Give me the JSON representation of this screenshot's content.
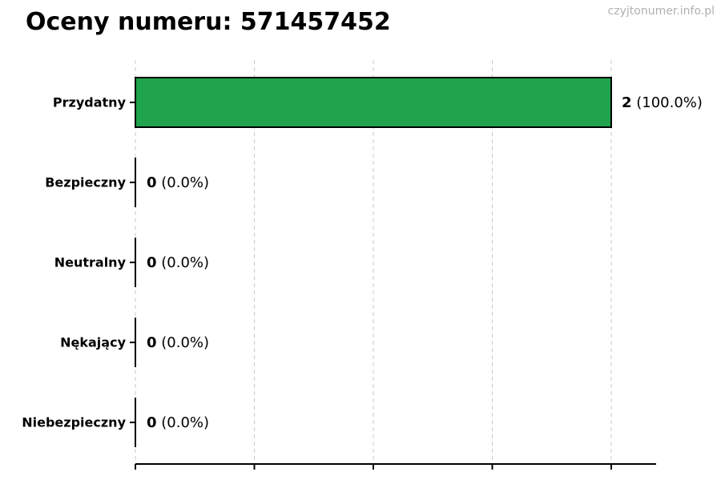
{
  "title": "Oceny numeru: 571457452",
  "watermark": "czyjtonumer.info.pl",
  "colors": {
    "bar_fill": "#1fa34c",
    "bar_stroke": "#000000",
    "grid": "#c9c9c9",
    "axis": "#000000",
    "label_text": "#000000",
    "watermark_text": "#b0b0b0"
  },
  "chart_data": {
    "type": "bar",
    "orientation": "horizontal",
    "title": "Oceny numeru: 571457452",
    "categories": [
      "Przydatny",
      "Bezpieczny",
      "Neutralny",
      "Nękający",
      "Niebezpieczny"
    ],
    "values": [
      2,
      0,
      0,
      0,
      0
    ],
    "value_labels": [
      {
        "count": "2",
        "percent": "(100.0%)"
      },
      {
        "count": "0",
        "percent": "(0.0%)"
      },
      {
        "count": "0",
        "percent": "(0.0%)"
      },
      {
        "count": "0",
        "percent": "(0.0%)"
      },
      {
        "count": "0",
        "percent": "(0.0%)"
      }
    ],
    "xlabel": "",
    "ylabel": "",
    "xlim": [
      0,
      2
    ],
    "x_gridlines": [
      0,
      0.5,
      1.0,
      1.5,
      2.0
    ],
    "grid": true,
    "grid_style": "dashed",
    "legend": false
  }
}
